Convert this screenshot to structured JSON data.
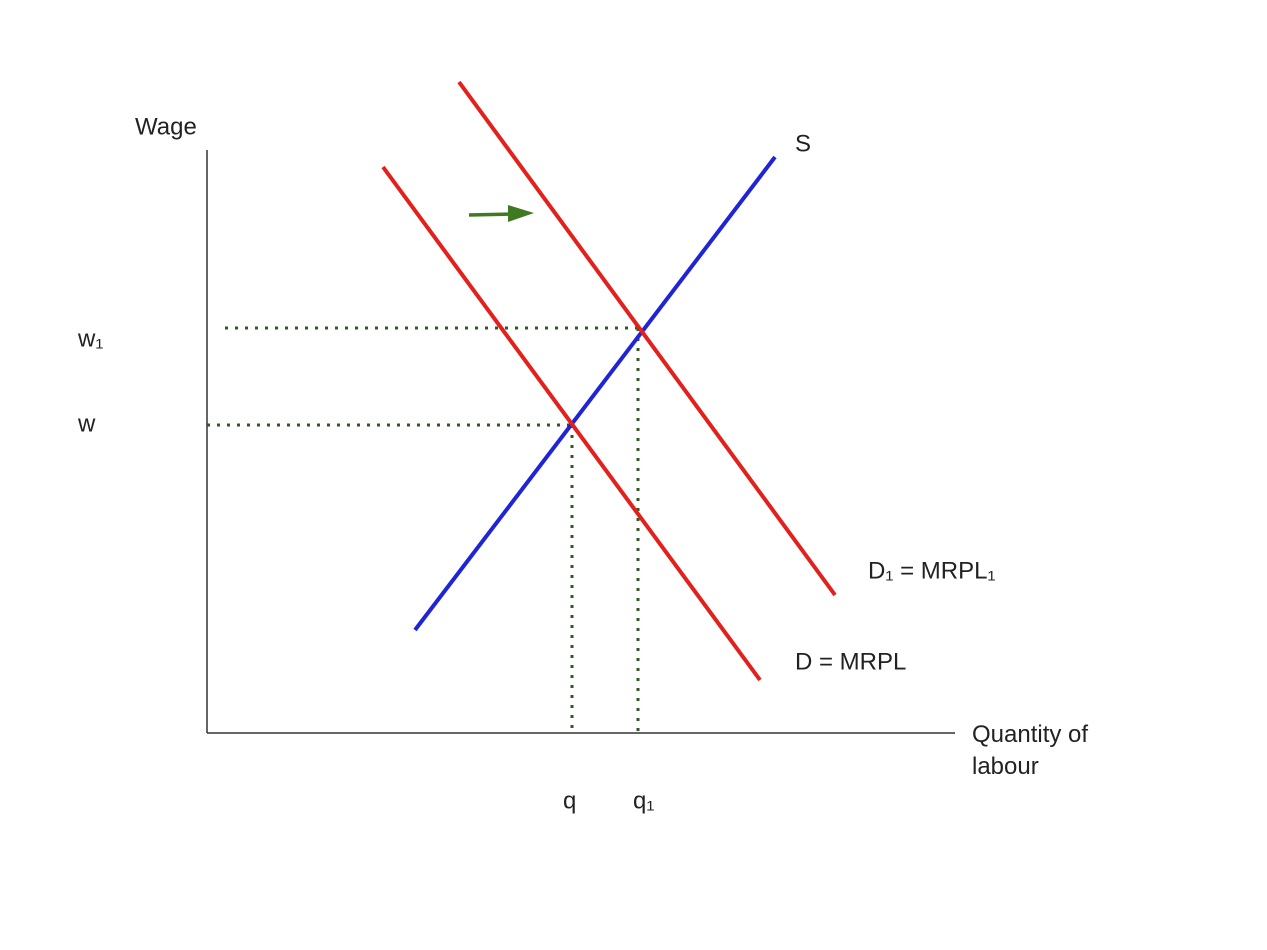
{
  "axes": {
    "y_label": "Wage",
    "x_label": "Quantity of labour"
  },
  "curves": {
    "supply": "S",
    "demand": "D = MRPL",
    "demand_new": "D₁ = MRPL₁"
  },
  "levels": {
    "wage_new": "w₁",
    "wage": "w",
    "quantity": "q",
    "quantity_new": "q₁"
  }
}
